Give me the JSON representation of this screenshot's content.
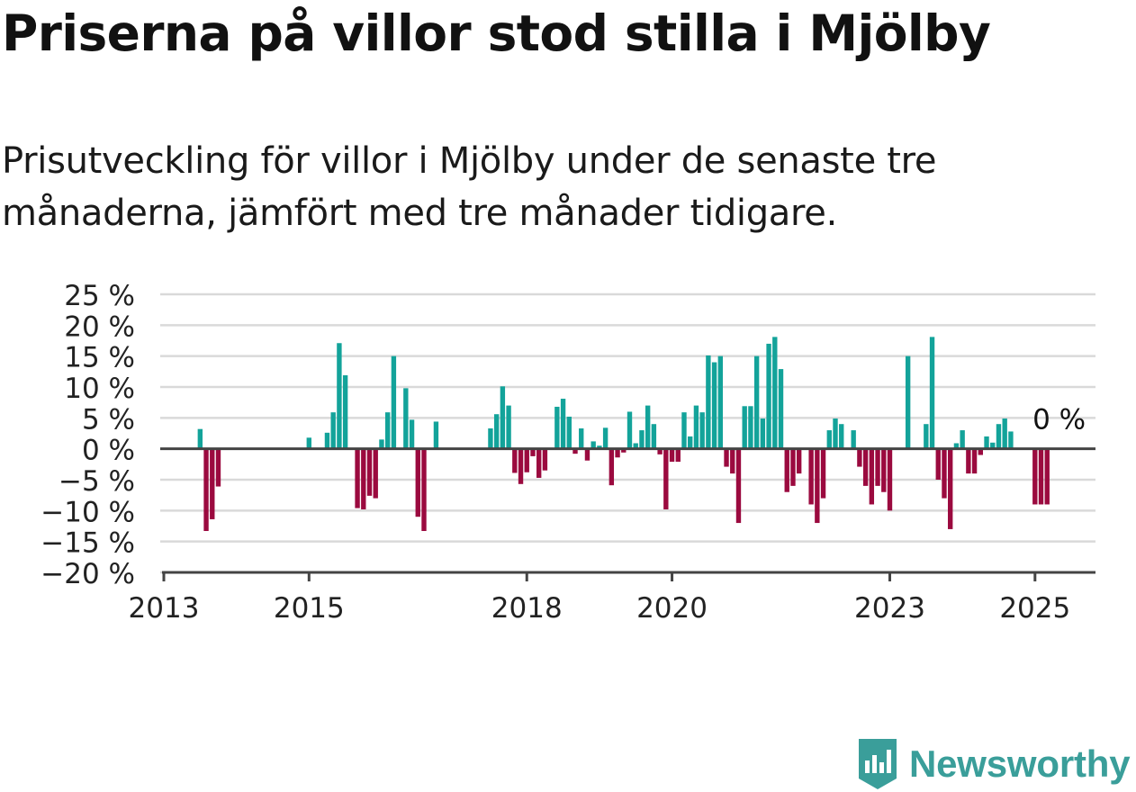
{
  "header": {
    "title": "Priserna på villor stod stilla i Mjölby",
    "subtitle": "Prisutveckling för villor i Mjölby under de senaste tre månaderna, jämfört med tre månader tidigare."
  },
  "brand": {
    "name": "Newsworthy",
    "icon": "newsworthy-logo-icon",
    "color": "#3a9e9a"
  },
  "colors": {
    "positive": "#13a39a",
    "negative": "#9b0a3f",
    "grid": "#d9d9d9",
    "axis": "#444444",
    "text": "#222222"
  },
  "chart_data": {
    "type": "bar",
    "title": "Priserna på villor stod stilla i Mjölby",
    "ylim": [
      -20,
      25
    ],
    "yticks": [
      25,
      20,
      15,
      10,
      5,
      0,
      -5,
      -10,
      -15,
      -20
    ],
    "ytick_labels": [
      "25 %",
      "20 %",
      "15 %",
      "10 %",
      "5 %",
      "0 %",
      "−5 %",
      "−10 %",
      "−15 %",
      "−20 %"
    ],
    "xlim": [
      "2013-01",
      "2025-11"
    ],
    "xticks": [
      {
        "date": "2013-01",
        "label": "2013"
      },
      {
        "date": "2015-01",
        "label": "2015"
      },
      {
        "date": "2018-01",
        "label": "2018"
      },
      {
        "date": "2020-01",
        "label": "2020"
      },
      {
        "date": "2023-01",
        "label": "2023"
      },
      {
        "date": "2025-01",
        "label": "2025"
      }
    ],
    "grid": true,
    "annotation": {
      "date": "2024-12",
      "label": "0 %"
    },
    "values": [
      {
        "date": "2013-07",
        "value": 3.2
      },
      {
        "date": "2013-08",
        "value": -13.3
      },
      {
        "date": "2013-09",
        "value": -11.4
      },
      {
        "date": "2013-10",
        "value": -6.1
      },
      {
        "date": "2015-01",
        "value": 1.8
      },
      {
        "date": "2015-04",
        "value": 2.6
      },
      {
        "date": "2015-05",
        "value": 5.9
      },
      {
        "date": "2015-06",
        "value": 17.1
      },
      {
        "date": "2015-07",
        "value": 11.9
      },
      {
        "date": "2015-09",
        "value": -9.6
      },
      {
        "date": "2015-10",
        "value": -9.8
      },
      {
        "date": "2015-11",
        "value": -7.6
      },
      {
        "date": "2015-12",
        "value": -8.0
      },
      {
        "date": "2016-01",
        "value": 1.5
      },
      {
        "date": "2016-02",
        "value": 5.9
      },
      {
        "date": "2016-03",
        "value": 15.0
      },
      {
        "date": "2016-05",
        "value": 9.8
      },
      {
        "date": "2016-06",
        "value": 4.7
      },
      {
        "date": "2016-07",
        "value": -11.0
      },
      {
        "date": "2016-08",
        "value": -13.3
      },
      {
        "date": "2016-10",
        "value": 4.4
      },
      {
        "date": "2017-07",
        "value": 3.3
      },
      {
        "date": "2017-08",
        "value": 5.6
      },
      {
        "date": "2017-09",
        "value": 10.1
      },
      {
        "date": "2017-10",
        "value": 7.0
      },
      {
        "date": "2017-11",
        "value": -3.9
      },
      {
        "date": "2017-12",
        "value": -5.7
      },
      {
        "date": "2018-01",
        "value": -3.8
      },
      {
        "date": "2018-02",
        "value": -1.2
      },
      {
        "date": "2018-03",
        "value": -4.7
      },
      {
        "date": "2018-04",
        "value": -3.5
      },
      {
        "date": "2018-06",
        "value": 6.8
      },
      {
        "date": "2018-07",
        "value": 8.1
      },
      {
        "date": "2018-08",
        "value": 5.2
      },
      {
        "date": "2018-09",
        "value": -0.8
      },
      {
        "date": "2018-10",
        "value": 3.3
      },
      {
        "date": "2018-11",
        "value": -1.9
      },
      {
        "date": "2018-12",
        "value": 1.2
      },
      {
        "date": "2019-01",
        "value": 0.5
      },
      {
        "date": "2019-02",
        "value": 3.4
      },
      {
        "date": "2019-03",
        "value": -5.9
      },
      {
        "date": "2019-04",
        "value": -1.4
      },
      {
        "date": "2019-05",
        "value": -0.6
      },
      {
        "date": "2019-06",
        "value": 6.0
      },
      {
        "date": "2019-07",
        "value": 0.9
      },
      {
        "date": "2019-08",
        "value": 3.0
      },
      {
        "date": "2019-09",
        "value": 7.0
      },
      {
        "date": "2019-10",
        "value": 4.0
      },
      {
        "date": "2019-11",
        "value": -0.9
      },
      {
        "date": "2019-12",
        "value": -9.8
      },
      {
        "date": "2020-01",
        "value": -2.1
      },
      {
        "date": "2020-02",
        "value": -2.1
      },
      {
        "date": "2020-03",
        "value": 5.9
      },
      {
        "date": "2020-04",
        "value": 2.0
      },
      {
        "date": "2020-05",
        "value": 7.0
      },
      {
        "date": "2020-06",
        "value": 5.9
      },
      {
        "date": "2020-07",
        "value": 15.1
      },
      {
        "date": "2020-08",
        "value": 14.0
      },
      {
        "date": "2020-09",
        "value": 15.0
      },
      {
        "date": "2020-10",
        "value": -2.9
      },
      {
        "date": "2020-11",
        "value": -4.0
      },
      {
        "date": "2020-12",
        "value": -12.0
      },
      {
        "date": "2021-01",
        "value": 6.9
      },
      {
        "date": "2021-02",
        "value": 6.9
      },
      {
        "date": "2021-03",
        "value": 15.0
      },
      {
        "date": "2021-04",
        "value": 4.9
      },
      {
        "date": "2021-05",
        "value": 17.0
      },
      {
        "date": "2021-06",
        "value": 18.1
      },
      {
        "date": "2021-07",
        "value": 12.9
      },
      {
        "date": "2021-08",
        "value": -7.0
      },
      {
        "date": "2021-09",
        "value": -6.0
      },
      {
        "date": "2021-10",
        "value": -4.0
      },
      {
        "date": "2021-12",
        "value": -9.0
      },
      {
        "date": "2022-01",
        "value": -12.0
      },
      {
        "date": "2022-02",
        "value": -8.0
      },
      {
        "date": "2022-03",
        "value": 3.0
      },
      {
        "date": "2022-04",
        "value": 4.9
      },
      {
        "date": "2022-05",
        "value": 4.0
      },
      {
        "date": "2022-07",
        "value": 3.0
      },
      {
        "date": "2022-08",
        "value": -2.9
      },
      {
        "date": "2022-09",
        "value": -6.0
      },
      {
        "date": "2022-10",
        "value": -9.0
      },
      {
        "date": "2022-11",
        "value": -6.0
      },
      {
        "date": "2022-12",
        "value": -7.0
      },
      {
        "date": "2023-01",
        "value": -10.0
      },
      {
        "date": "2023-04",
        "value": 15.0
      },
      {
        "date": "2023-07",
        "value": 4.0
      },
      {
        "date": "2023-08",
        "value": 18.1
      },
      {
        "date": "2023-09",
        "value": -5.0
      },
      {
        "date": "2023-10",
        "value": -8.0
      },
      {
        "date": "2023-11",
        "value": -13.0
      },
      {
        "date": "2023-12",
        "value": 0.9
      },
      {
        "date": "2024-01",
        "value": 3.0
      },
      {
        "date": "2024-02",
        "value": -4.0
      },
      {
        "date": "2024-03",
        "value": -4.0
      },
      {
        "date": "2024-04",
        "value": -1.0
      },
      {
        "date": "2024-05",
        "value": 2.0
      },
      {
        "date": "2024-06",
        "value": 1.0
      },
      {
        "date": "2024-07",
        "value": 4.0
      },
      {
        "date": "2024-08",
        "value": 4.9
      },
      {
        "date": "2024-09",
        "value": 2.8
      },
      {
        "date": "2025-01",
        "value": -9.0
      },
      {
        "date": "2025-02",
        "value": -9.0
      },
      {
        "date": "2025-03",
        "value": -9.0
      }
    ]
  }
}
